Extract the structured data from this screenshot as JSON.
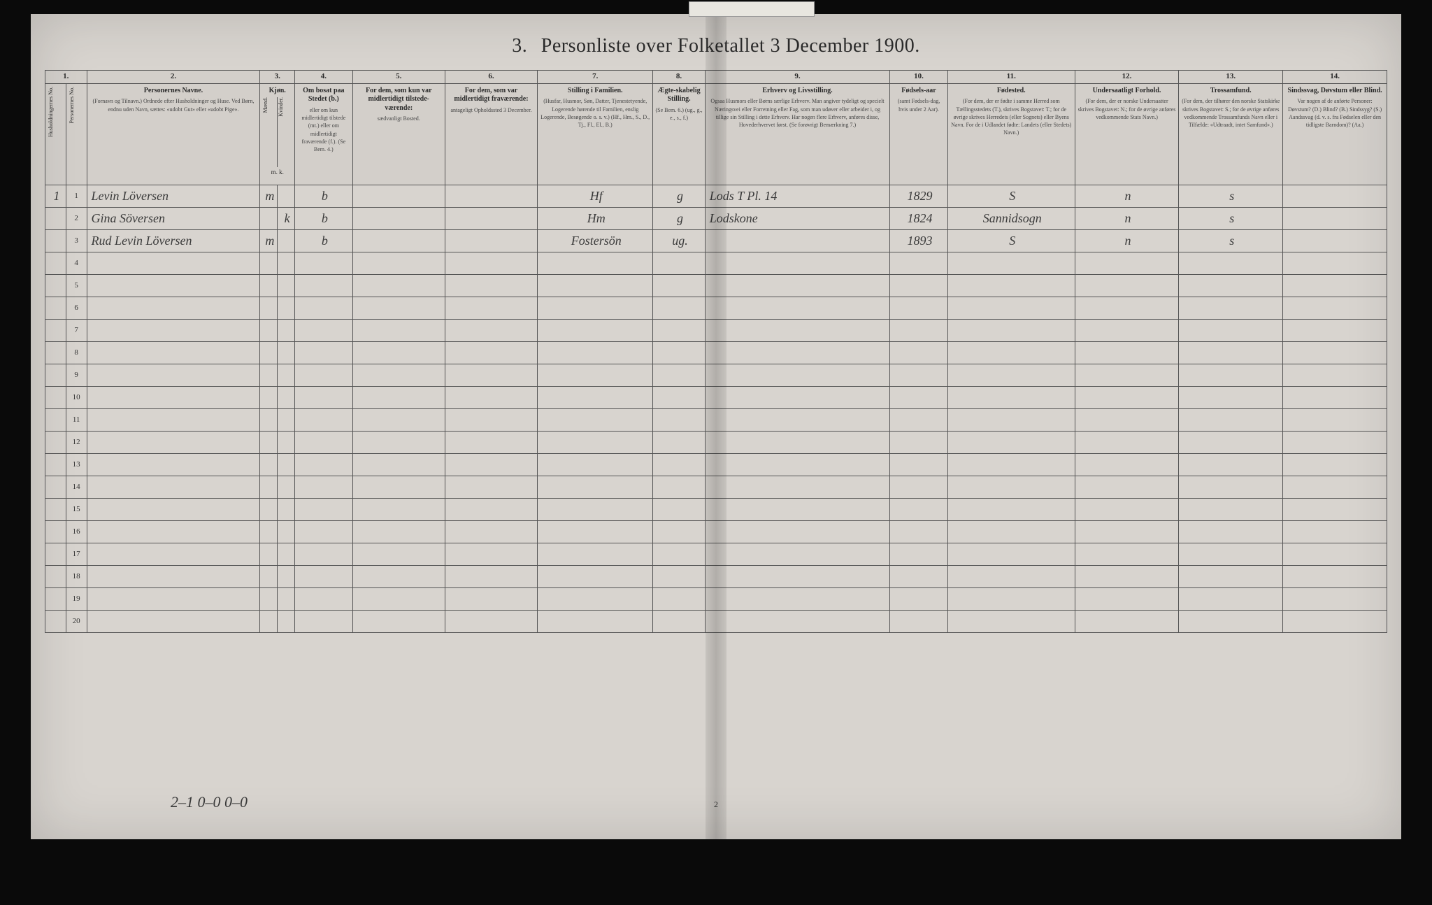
{
  "title_num": "3.",
  "title_text": "Personliste over Folketallet 3 December 1900.",
  "colnums": [
    "1.",
    "2.",
    "3.",
    "4.",
    "5.",
    "6.",
    "7.",
    "8.",
    "9.",
    "10.",
    "11.",
    "12.",
    "13.",
    "14."
  ],
  "headers": {
    "c1a": "Husholdningernes No.",
    "c1b": "Personernes No.",
    "c2_title": "Personernes Navne.",
    "c2_sub": "(Fornavn og Tilnavn.)\nOrdnede efter Husholdninger og Huse.\nVed Børn, endnu uden Navn, sættes: «udobt Gut» eller «udobt Pige».",
    "c3_title": "Kjøn.",
    "c3_m": "Mænd.",
    "c3_k": "Kvinder.",
    "c3_mk": "m.  k.",
    "c4_title": "Om bosat paa Stedet (b.)",
    "c4_sub": "eller om kun midlertidigt tilstede (mt.) eller om midlertidigt fraværende (f.). (Se Bem. 4.)",
    "c5_title": "For dem, som kun var midlertidigt tilstede-værende:",
    "c5_sub": "sædvanligt Bosted.",
    "c6_title": "For dem, som var midlertidigt fraværende:",
    "c6_sub": "antageligt Opholdssted 3 December.",
    "c7_title": "Stilling i Familien.",
    "c7_sub": "(Husfar, Husmor, Søn, Datter, Tjenestetyende, Logerende hørende til Familien, enslig Logerende, Besøgende o. s. v.)\n(Hf., Hm., S., D., Tj., Fl., El., B.)",
    "c8_title": "Ægte-skabelig Stilling.",
    "c8_sub": "(Se Bem. 6.)\n(ug., g., e., s., f.)",
    "c9_title": "Erhverv og Livsstilling.",
    "c9_sub": "Ogsaa Husmors eller Børns særlige Erhverv. Man angiver tydeligt og specielt Næringsvei eller Forretning eller Fag, som man udøver eller arbeider i, og tillige sin Stilling i dette Erhverv. Har nogen flere Erhverv, anføres disse, Hovederhvervet først.\n(Se forøvrigt Bemærkning 7.)",
    "c10_title": "Fødsels-aar",
    "c10_sub": "(samt Fødsels-dag, hvis under 2 Aar).",
    "c11_title": "Fødested.",
    "c11_sub": "(For dem, der er fødte i samme Herred som Tællingsstedets (T.), skrives Bogstavet: T.; for de øvrige skrives Herredets (eller Sognets) eller Byens Navn. For de i Udlandet fødte: Landets (eller Stedets) Navn.)",
    "c12_title": "Undersaatligt Forhold.",
    "c12_sub": "(For dem, der er norske Undersaatter skrives Bogstavet: N.; for de øvrige anføres vedkommende Stats Navn.)",
    "c13_title": "Trossamfund.",
    "c13_sub": "(For dem, der tilhører den norske Statskirke skrives Bogstavet: S.; for de øvrige anføres vedkommende Trossamfunds Navn eller i Tilfælde: «Udtraadt, intet Samfund».)",
    "c14_title": "Sindssvag, Døvstum eller Blind.",
    "c14_sub": "Var nogen af de anførte Personer:\nDøvstum? (D.)\nBlind? (B.)\nSindssyg? (S.)\nAandssvag (d. v. s. fra Fødselen eller den tidligste Barndom)? (Aa.)"
  },
  "rows": [
    {
      "hnum": "1",
      "pnum": "1",
      "name": "Levin Löversen",
      "sex": "m",
      "res": "b",
      "c5": "",
      "c6": "",
      "c7": "Hf",
      "c8": "g",
      "c9": "Lods  T Pl. 14",
      "c10": "1829",
      "c11": "S",
      "c12": "n",
      "c13": "s",
      "c14": ""
    },
    {
      "hnum": "",
      "pnum": "2",
      "name": "Gina Söversen",
      "sex": "k",
      "res": "b",
      "c5": "",
      "c6": "",
      "c7": "Hm",
      "c8": "g",
      "c9": "Lodskone",
      "c10": "1824",
      "c11": "Sannidsogn",
      "c12": "n",
      "c13": "s",
      "c14": ""
    },
    {
      "hnum": "",
      "pnum": "3",
      "name": "Rud Levin Löversen",
      "sex": "m",
      "res": "b",
      "c5": "",
      "c6": "",
      "c7": "Fostersön",
      "c8": "ug.",
      "c9": "",
      "c10": "1893",
      "c11": "S",
      "c12": "n",
      "c13": "s",
      "c14": ""
    },
    {
      "pnum": "4"
    },
    {
      "pnum": "5"
    },
    {
      "pnum": "6"
    },
    {
      "pnum": "7"
    },
    {
      "pnum": "8"
    },
    {
      "pnum": "9"
    },
    {
      "pnum": "10"
    },
    {
      "pnum": "11"
    },
    {
      "pnum": "12"
    },
    {
      "pnum": "13"
    },
    {
      "pnum": "14"
    },
    {
      "pnum": "15"
    },
    {
      "pnum": "16"
    },
    {
      "pnum": "17"
    },
    {
      "pnum": "18"
    },
    {
      "pnum": "19"
    },
    {
      "pnum": "20"
    }
  ],
  "footer_tally": "2–1   0–0   0–0",
  "page_number": "2",
  "colors": {
    "page_bg": "#d8d4cf",
    "ink": "#2a2a2a",
    "handwriting": "#3a3a3a",
    "rule": "#555"
  },
  "col_widths_pct": [
    1.8,
    1.8,
    15,
    1.5,
    1.5,
    5,
    8,
    8,
    10,
    4.5,
    16,
    5,
    11,
    9,
    9,
    9
  ]
}
